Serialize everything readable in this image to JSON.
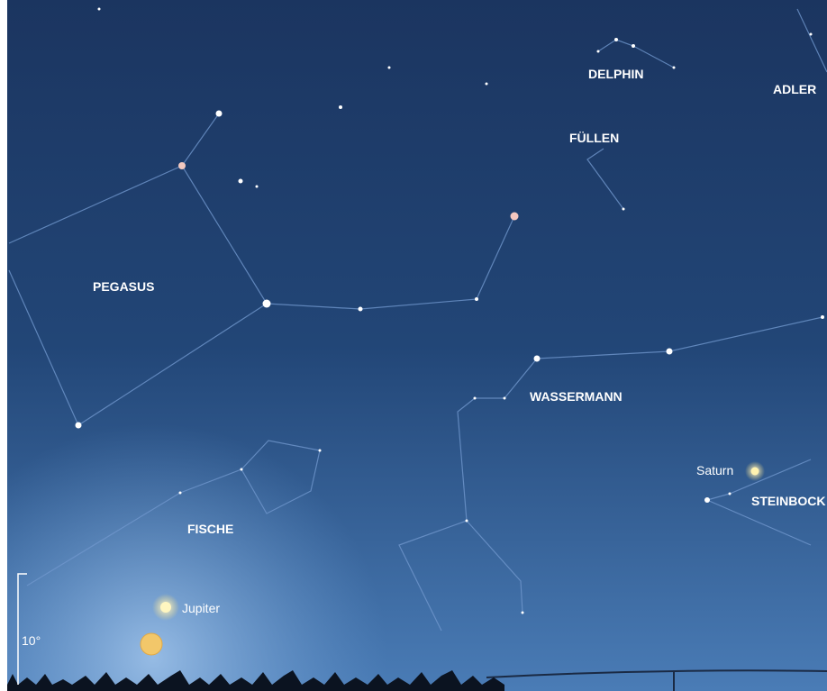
{
  "constellations": [
    {
      "label": "DELPHIN"
    },
    {
      "label": "ADLER"
    },
    {
      "label": "FÜLLEN"
    },
    {
      "label": "PEGASUS"
    },
    {
      "label": "WASSERMANN"
    },
    {
      "label": "STEINBOCK"
    },
    {
      "label": "FISCHE"
    }
  ],
  "planets": [
    {
      "label": "Saturn"
    },
    {
      "label": "Jupiter"
    }
  ],
  "scale": {
    "label": "10°"
  }
}
